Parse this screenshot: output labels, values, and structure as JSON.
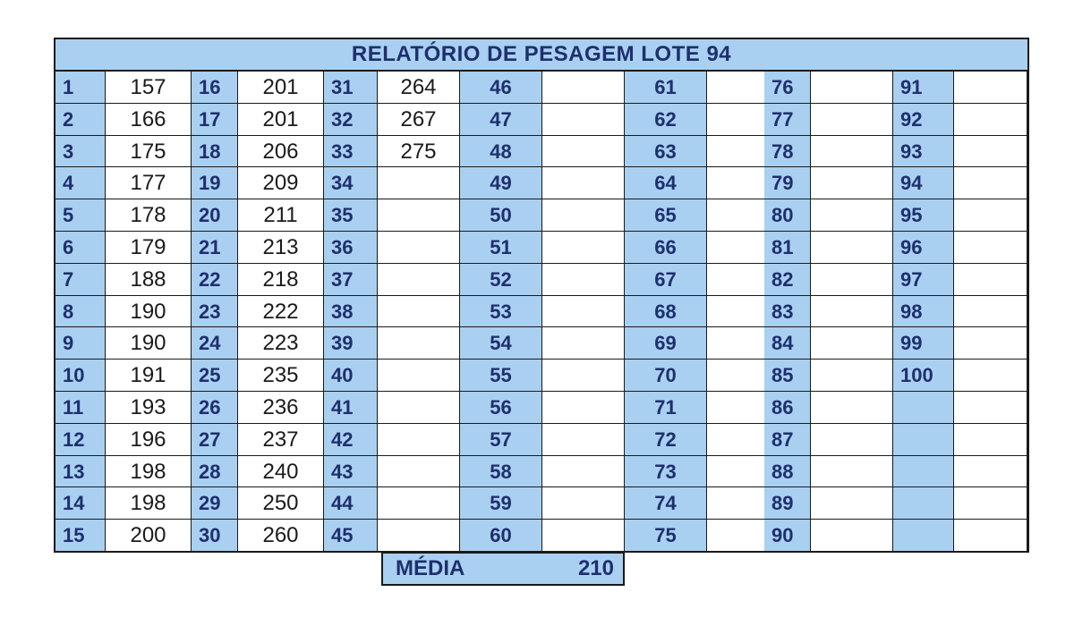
{
  "title": "RELATÓRIO DE PESAGEM LOTE  94",
  "columns": [
    {
      "numbers": [
        "1",
        "2",
        "3",
        "4",
        "5",
        "6",
        "7",
        "8",
        "9",
        "10",
        "11",
        "12",
        "13",
        "14",
        "15"
      ],
      "values": [
        "157",
        "166",
        "175",
        "177",
        "178",
        "179",
        "188",
        "190",
        "190",
        "191",
        "193",
        "196",
        "198",
        "198",
        "200"
      ]
    },
    {
      "numbers": [
        "16",
        "17",
        "18",
        "19",
        "20",
        "21",
        "22",
        "23",
        "24",
        "25",
        "26",
        "27",
        "28",
        "29",
        "30"
      ],
      "values": [
        "201",
        "201",
        "206",
        "209",
        "211",
        "213",
        "218",
        "222",
        "223",
        "235",
        "236",
        "237",
        "240",
        "250",
        "260"
      ]
    },
    {
      "numbers": [
        "31",
        "32",
        "33",
        "34",
        "35",
        "36",
        "37",
        "38",
        "39",
        "40",
        "41",
        "42",
        "43",
        "44",
        "45"
      ],
      "values": [
        "264",
        "267",
        "275",
        "",
        "",
        "",
        "",
        "",
        "",
        "",
        "",
        "",
        "",
        "",
        ""
      ]
    },
    {
      "numbers": [
        "46",
        "47",
        "48",
        "49",
        "50",
        "51",
        "52",
        "53",
        "54",
        "55",
        "56",
        "57",
        "58",
        "59",
        "60"
      ],
      "values": [
        "",
        "",
        "",
        "",
        "",
        "",
        "",
        "",
        "",
        "",
        "",
        "",
        "",
        "",
        ""
      ]
    },
    {
      "numbers": [
        "61",
        "62",
        "63",
        "64",
        "65",
        "66",
        "67",
        "68",
        "69",
        "70",
        "71",
        "72",
        "73",
        "74",
        "75"
      ],
      "values": [
        "",
        "",
        "",
        "",
        "",
        "",
        "",
        "",
        "",
        "",
        "",
        "",
        "",
        "",
        ""
      ]
    },
    {
      "numbers": [
        "76",
        "77",
        "78",
        "79",
        "80",
        "81",
        "82",
        "83",
        "84",
        "85",
        "86",
        "87",
        "88",
        "89",
        "90"
      ],
      "values": [
        "",
        "",
        "",
        "",
        "",
        "",
        "",
        "",
        "",
        "",
        "",
        "",
        "",
        "",
        ""
      ]
    },
    {
      "numbers": [
        "91",
        "92",
        "93",
        "94",
        "95",
        "96",
        "97",
        "98",
        "99",
        "100",
        "",
        "",
        "",
        "",
        ""
      ],
      "values": [
        "",
        "",
        "",
        "",
        "",
        "",
        "",
        "",
        "",
        "",
        "",
        "",
        "",
        "",
        ""
      ]
    }
  ],
  "summary": {
    "label": "MÉDIA",
    "value": "210"
  },
  "colors": {
    "header_blue": "#a9d0f0",
    "text_navy": "#1e2f6e",
    "border": "#1a1a1a"
  }
}
